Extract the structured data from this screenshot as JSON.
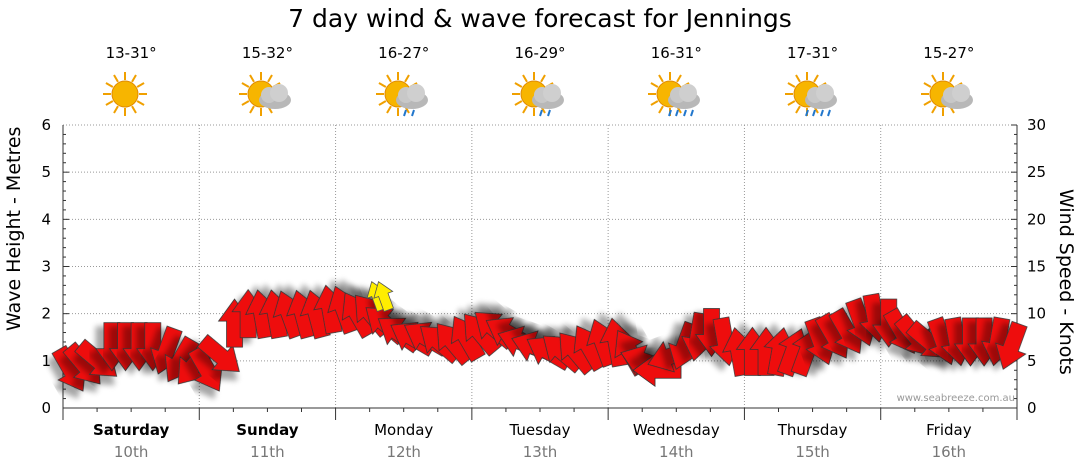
{
  "chart_data": {
    "type": "line",
    "title": "7 day wind & wave forecast for Jennings",
    "ylabel_left": "Wave Height - Metres",
    "ylabel_right": "Wind Speed - Knots",
    "ylim_left": [
      0,
      6
    ],
    "ylim_right": [
      0,
      30
    ],
    "left_ticks": [
      "0",
      "1",
      "2",
      "3",
      "4",
      "5",
      "6"
    ],
    "right_ticks": [
      "0",
      "5",
      "10",
      "15",
      "20",
      "25",
      "30"
    ],
    "grid": true,
    "watermark": "www.seabreeze.com.au",
    "days": [
      {
        "name": "Saturday",
        "date": "10th",
        "bold": true,
        "temp": "13-31°",
        "icon": "sun-icon"
      },
      {
        "name": "Sunday",
        "date": "11th",
        "bold": true,
        "temp": "15-32°",
        "icon": "sun-cloud-icon"
      },
      {
        "name": "Monday",
        "date": "12th",
        "bold": false,
        "temp": "16-27°",
        "icon": "sun-cloud-rain-icon"
      },
      {
        "name": "Tuesday",
        "date": "13th",
        "bold": false,
        "temp": "16-29°",
        "icon": "sun-cloud-rain-icon"
      },
      {
        "name": "Wednesday",
        "date": "14th",
        "bold": false,
        "temp": "16-31°",
        "icon": "sun-cloud-heavy-rain-icon"
      },
      {
        "name": "Thursday",
        "date": "15th",
        "bold": false,
        "temp": "17-31°",
        "icon": "sun-cloud-heavy-rain-icon"
      },
      {
        "name": "Friday",
        "date": "16th",
        "bold": false,
        "temp": "15-27°",
        "icon": "sun-cloud-icon"
      }
    ],
    "wind_series": {
      "name": "Wind",
      "color": "#ee1111",
      "x_day": [
        0.0,
        0.1,
        0.2,
        0.3,
        0.4,
        0.5,
        0.6,
        0.7,
        0.8,
        0.9,
        1.0,
        1.1,
        1.2,
        1.3,
        1.4,
        1.5,
        1.6,
        1.7,
        1.8,
        1.9,
        2.0,
        2.1,
        2.2,
        2.3,
        2.4,
        2.5,
        2.6,
        2.7,
        2.8,
        2.9,
        3.0,
        3.1,
        3.2,
        3.3,
        3.4,
        3.5,
        3.6,
        3.7,
        3.8,
        3.9,
        4.0,
        4.1,
        4.2,
        4.3,
        4.4,
        4.5,
        4.6,
        4.7,
        4.8,
        4.9,
        5.0,
        5.1,
        5.2,
        5.3,
        5.4,
        5.5,
        5.6,
        5.7,
        5.8,
        5.9,
        6.0,
        6.1,
        6.2,
        6.3,
        6.4,
        6.5,
        6.6,
        6.7,
        6.8,
        6.9
      ],
      "knots": [
        4,
        4.5,
        5,
        6.5,
        6.5,
        6.5,
        6.5,
        6,
        5,
        4.5,
        4,
        5.5,
        9,
        10,
        10,
        10,
        10,
        10,
        10,
        10.5,
        10.5,
        10,
        10,
        9,
        8,
        7.5,
        7.5,
        7,
        7,
        7.5,
        8,
        8.5,
        8,
        7,
        6.5,
        6,
        6,
        6,
        6.5,
        7,
        7,
        6,
        5,
        4,
        5.5,
        6.5,
        7.5,
        8,
        7,
        6,
        6,
        6,
        6,
        6,
        6,
        7,
        7.5,
        8,
        9,
        9.5,
        9,
        8,
        7.5,
        7,
        7,
        7,
        7,
        7,
        7,
        6.5
      ],
      "direction_deg": [
        60,
        50,
        40,
        90,
        90,
        90,
        90,
        110,
        120,
        130,
        60,
        40,
        270,
        270,
        260,
        260,
        250,
        255,
        255,
        260,
        250,
        240,
        230,
        220,
        215,
        210,
        210,
        220,
        230,
        240,
        230,
        220,
        210,
        200,
        200,
        210,
        220,
        230,
        240,
        250,
        260,
        240,
        200,
        180,
        160,
        110,
        100,
        90,
        80,
        260,
        270,
        270,
        280,
        290,
        290,
        70,
        60,
        60,
        70,
        80,
        90,
        60,
        50,
        40,
        70,
        80,
        90,
        90,
        100,
        110
      ]
    },
    "wave_series": {
      "name": "Wave",
      "color": "#ffee00",
      "x_day": [
        2.3,
        2.35
      ],
      "metres": [
        2.4,
        2.4
      ],
      "direction_deg": [
        250,
        250
      ]
    }
  }
}
